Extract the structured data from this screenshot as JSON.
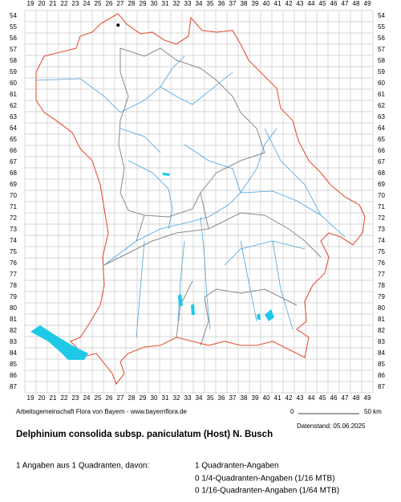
{
  "map": {
    "columns": [
      19,
      20,
      21,
      22,
      23,
      24,
      25,
      26,
      27,
      28,
      29,
      30,
      31,
      32,
      33,
      34,
      35,
      36,
      37,
      38,
      39,
      40,
      41,
      42,
      43,
      44,
      45,
      46,
      47,
      48,
      49
    ],
    "rows": [
      54,
      55,
      56,
      57,
      58,
      59,
      60,
      61,
      62,
      63,
      64,
      65,
      66,
      67,
      68,
      69,
      70,
      71,
      72,
      73,
      74,
      75,
      76,
      77,
      78,
      79,
      80,
      81,
      82,
      83,
      84,
      85,
      86,
      87
    ],
    "occurrences": [
      {
        "column": 27,
        "row": 55
      }
    ]
  },
  "footer": {
    "credit": "Arbeitsgemeinschaft Flora von Bayern - www.bayernflora.de",
    "scale_start": "0",
    "scale_end": "50 km",
    "date": "Datenstand: 05.06.2025",
    "title": "Delphinium consolida subsp. paniculatum (Host) N. Busch",
    "summary": "1 Angaben aus 1 Quadranten, davon:",
    "details": [
      "1 Quadranten-Angaben",
      "0 1/4-Quadranten-Angaben (1/16 MTB)",
      "0 1/16-Quadranten-Angaben (1/64 MTB)"
    ]
  }
}
